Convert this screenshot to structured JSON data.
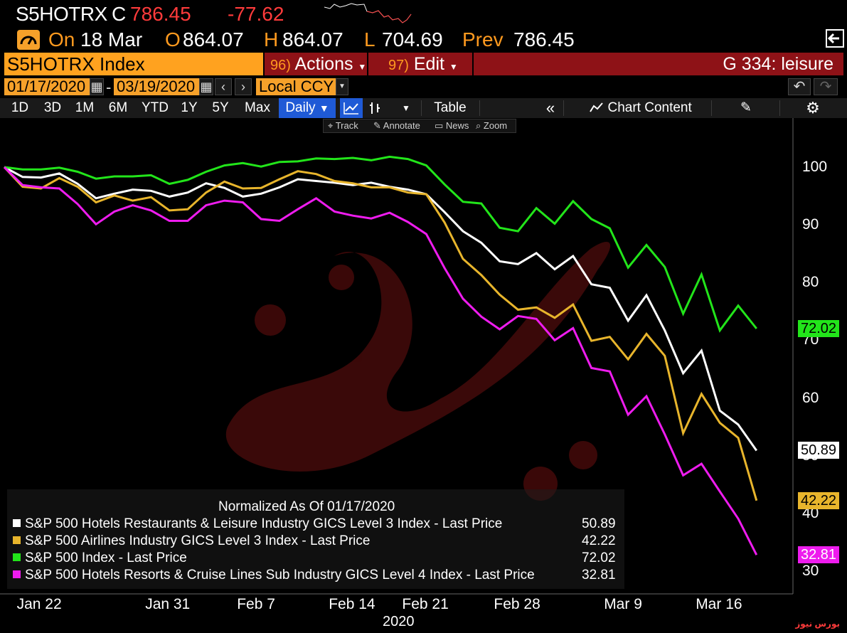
{
  "header": {
    "ticker": "S5HOTRX",
    "c_label": "C",
    "last_value": "786.45",
    "change": "-77.62"
  },
  "quote": {
    "on_label": "On",
    "date": "18 Mar",
    "o_label": "O",
    "open": "864.07",
    "h_label": "H",
    "high": "864.07",
    "l_label": "L",
    "low": "704.69",
    "prev_label": "Prev",
    "prev": "786.45"
  },
  "security_bar": {
    "security": "S5HOTRX Index",
    "actions_num": "96)",
    "actions_label": "Actions",
    "edit_num": "97)",
    "edit_label": "Edit",
    "function_label": "G 334: leisure"
  },
  "date_range": {
    "start": "01/17/2020",
    "dash": "-",
    "end": "03/19/2020",
    "currency": "Local CCY"
  },
  "toolbar": {
    "periods": [
      "1D",
      "3D",
      "1M",
      "6M",
      "YTD",
      "1Y",
      "5Y",
      "Max"
    ],
    "frequency": "Daily",
    "table_label": "Table",
    "chart_content_label": "Chart Content"
  },
  "subtoolbar": {
    "track": "Track",
    "annotate": "Annotate",
    "news": "News",
    "zoom": "Zoom"
  },
  "colors": {
    "white_series": "#ffffff",
    "yellow_series": "#e8b52c",
    "green_series": "#22e51a",
    "magenta_series": "#ee1cee",
    "accent_orange": "#ffa21f",
    "bar_red": "#8e1217"
  },
  "icons": [
    "gauge-icon",
    "calendar-icon",
    "arrow-left-icon",
    "arrow-right-icon",
    "line-chart-icon",
    "bar-chart-icon",
    "collapse-icon",
    "chart-content-icon",
    "edit-icon",
    "gear-icon",
    "undo-icon",
    "redo-icon",
    "exit-icon"
  ],
  "chart_data": {
    "type": "line",
    "legend_title": "Normalized As Of 01/17/2020",
    "x_label": "2020",
    "x_ticks": [
      {
        "label": "Jan 22",
        "day": 2
      },
      {
        "label": "Jan 31",
        "day": 9
      },
      {
        "label": "Feb 7",
        "day": 14
      },
      {
        "label": "Feb 14",
        "day": 19
      },
      {
        "label": "Feb 21",
        "day": 23
      },
      {
        "label": "Feb 28",
        "day": 28
      },
      {
        "label": "Mar 9",
        "day": 34
      },
      {
        "label": "Mar 16",
        "day": 39
      }
    ],
    "ylim": [
      28,
      105
    ],
    "y_ticks": [
      30,
      40,
      50,
      60,
      70,
      80,
      90,
      100
    ],
    "legend_placement": "bottom-left",
    "grid": false,
    "series": [
      {
        "name": "S&P 500 Hotels Restaurants & Leisure Industry GICS Level 3 Index - Last Price",
        "last": "50.89",
        "color": "#ffffff",
        "values": [
          100,
          98.3,
          98.2,
          98.9,
          97.1,
          94.6,
          95.4,
          96.1,
          95.9,
          94.9,
          95.6,
          97.2,
          96.4,
          94.9,
          95.4,
          96.5,
          97.9,
          97.6,
          97.3,
          96.9,
          97.3,
          96.6,
          96.1,
          95.3,
          92.2,
          88.9,
          86.9,
          83.7,
          83.2,
          85.1,
          82.3,
          84.6,
          79.7,
          79.1,
          73.4,
          77.8,
          71.7,
          64.3,
          68.2,
          57.8,
          55.4,
          50.89
        ]
      },
      {
        "name": "S&P 500 Airlines Industry GICS Level 3 Index - Last Price",
        "last": "42.22",
        "color": "#e8b52c",
        "values": [
          100,
          96.6,
          96.3,
          98.1,
          96.6,
          93.9,
          95.1,
          94.2,
          94.8,
          92.5,
          92.7,
          95.6,
          97.5,
          96.3,
          96.4,
          97.9,
          99.3,
          98.8,
          97.6,
          97.2,
          96.5,
          96.5,
          95.6,
          95.3,
          90.4,
          84.1,
          81.3,
          77.9,
          75.3,
          75.7,
          73.9,
          76.2,
          69.9,
          70.6,
          66.7,
          71.1,
          67.3,
          53.9,
          60.7,
          55.7,
          53.1,
          42.22
        ]
      },
      {
        "name": "S&P 500 Index - Last Price",
        "last": "72.02",
        "color": "#22e51a",
        "values": [
          100,
          99.6,
          99.6,
          99.9,
          99.2,
          98.0,
          98.4,
          98.4,
          98.6,
          97.1,
          97.8,
          99.2,
          100.3,
          100.7,
          100.1,
          100.9,
          101.0,
          101.5,
          101.4,
          101.6,
          101.2,
          101.8,
          101.4,
          100.3,
          97.0,
          94.0,
          93.7,
          89.5,
          88.9,
          92.9,
          90.2,
          94.1,
          91.0,
          89.4,
          82.6,
          86.5,
          82.7,
          74.6,
          81.4,
          71.7,
          76.0,
          72.02
        ]
      },
      {
        "name": "S&P 500 Hotels Resorts & Cruise Lines Sub Industry GICS Level 4 Index - Last Price",
        "last": "32.81",
        "color": "#ee1cee",
        "values": [
          100,
          96.9,
          96.5,
          96.3,
          93.6,
          90.1,
          92.3,
          93.4,
          92.5,
          90.7,
          90.7,
          93.4,
          94.2,
          93.9,
          91.0,
          90.7,
          92.7,
          94.6,
          92.3,
          91.6,
          91.1,
          92.1,
          90.5,
          88.4,
          82.5,
          77.2,
          74.1,
          71.9,
          74.2,
          73.7,
          70.0,
          72.1,
          65.2,
          64.6,
          57.1,
          60.3,
          53.7,
          46.6,
          48.6,
          43.8,
          39.1,
          32.81
        ]
      }
    ]
  }
}
